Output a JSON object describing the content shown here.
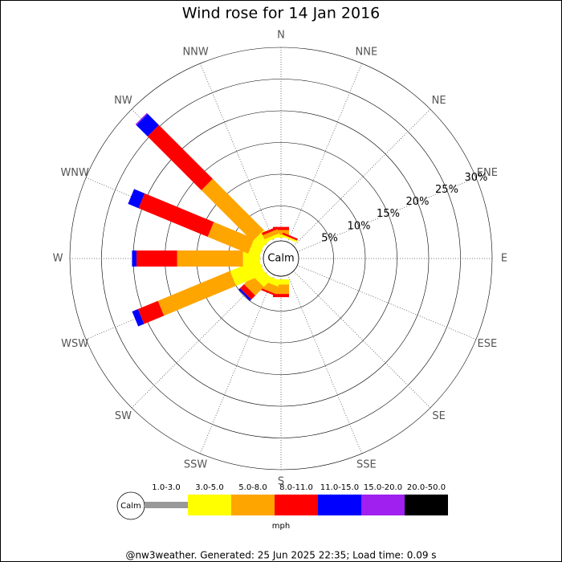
{
  "chart_data": {
    "type": "windrose",
    "title": "Wind rose for 14 Jan 2016",
    "categories": [
      "N",
      "NNE",
      "NE",
      "ENE",
      "E",
      "ESE",
      "SE",
      "SSE",
      "S",
      "SSW",
      "SW",
      "WSW",
      "W",
      "WNW",
      "NW",
      "NNW"
    ],
    "calm_label": "Calm",
    "unit": "mph",
    "rlim": [
      0,
      30
    ],
    "rticks": [
      {
        "value": 5,
        "label": "5%"
      },
      {
        "value": 10,
        "label": "10%"
      },
      {
        "value": 15,
        "label": "15%"
      },
      {
        "value": 20,
        "label": "20%"
      },
      {
        "value": 25,
        "label": "25%"
      },
      {
        "value": 30,
        "label": "30%"
      }
    ],
    "series": [
      {
        "name": "1.0-3.0",
        "color": "#999999",
        "values": [
          0,
          0,
          0,
          0,
          0,
          0,
          0,
          0,
          0,
          0,
          0,
          0,
          0,
          0,
          0,
          0
        ]
      },
      {
        "name": "3.0-5.0",
        "color": "#ffff00",
        "values": [
          0.4,
          0.3,
          0,
          0,
          0,
          0,
          0,
          0,
          0.8,
          1.0,
          1.8,
          4.9,
          2.7,
          1.8,
          1.8,
          0.5
        ]
      },
      {
        "name": "5.0-8.0",
        "color": "#ffa500",
        "values": [
          0.8,
          0,
          0,
          0,
          0,
          0,
          0,
          0,
          1.5,
          1.2,
          1.9,
          12.3,
          10.4,
          6.9,
          11.4,
          0.7
        ]
      },
      {
        "name": "8.0-11.0",
        "color": "#ff0000",
        "values": [
          0.5,
          0.3,
          0,
          0,
          0,
          0,
          0,
          0,
          0.5,
          0.3,
          0.9,
          3.4,
          6.4,
          11.8,
          12.0,
          0.4
        ]
      },
      {
        "name": "11.0-15.0",
        "color": "#0000ff",
        "values": [
          0,
          0,
          0,
          0,
          0,
          0,
          0,
          0,
          0,
          0,
          0.3,
          1.0,
          0.7,
          1.8,
          2.5,
          0
        ]
      },
      {
        "name": "15.0-20.0",
        "color": "#a020f0",
        "values": [
          0,
          0,
          0,
          0,
          0,
          0,
          0,
          0,
          0,
          0,
          0,
          0,
          0,
          0,
          0.2,
          0
        ]
      },
      {
        "name": "20.0-50.0",
        "color": "#000000",
        "values": [
          0,
          0,
          0,
          0,
          0,
          0,
          0,
          0,
          0,
          0,
          0,
          0,
          0,
          0,
          0,
          0
        ]
      }
    ],
    "footer": "@nw3weather. Generated: 25 Jun 2025 22:35; Load time: 0.09 s"
  }
}
